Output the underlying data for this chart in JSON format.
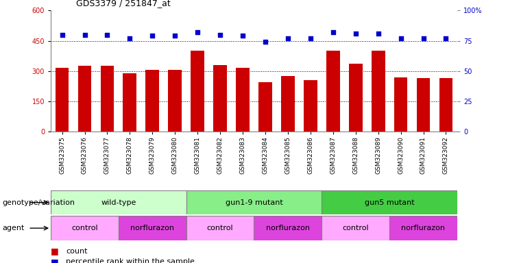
{
  "title": "GDS3379 / 251847_at",
  "samples": [
    "GSM323075",
    "GSM323076",
    "GSM323077",
    "GSM323078",
    "GSM323079",
    "GSM323080",
    "GSM323081",
    "GSM323082",
    "GSM323083",
    "GSM323084",
    "GSM323085",
    "GSM323086",
    "GSM323087",
    "GSM323088",
    "GSM323089",
    "GSM323090",
    "GSM323091",
    "GSM323092"
  ],
  "counts": [
    315,
    325,
    325,
    290,
    305,
    305,
    400,
    330,
    315,
    245,
    275,
    255,
    400,
    335,
    400,
    270,
    265,
    265
  ],
  "percentile_ranks": [
    80,
    80,
    80,
    77,
    79,
    79,
    82,
    80,
    79,
    74,
    77,
    77,
    82,
    81,
    81,
    77,
    77,
    77
  ],
  "ylim_left": [
    0,
    600
  ],
  "ylim_right": [
    0,
    100
  ],
  "yticks_left": [
    0,
    150,
    300,
    450,
    600
  ],
  "ytick_labels_left": [
    "0",
    "150",
    "300",
    "450",
    "600"
  ],
  "yticks_right": [
    0,
    25,
    50,
    75,
    100
  ],
  "ytick_labels_right": [
    "0",
    "25",
    "50",
    "75",
    "100%"
  ],
  "bar_color": "#cc0000",
  "dot_color": "#0000cc",
  "genotype_groups": [
    {
      "label": "wild-type",
      "start": 0,
      "end": 5,
      "color": "#ccffcc"
    },
    {
      "label": "gun1-9 mutant",
      "start": 6,
      "end": 11,
      "color": "#88ee88"
    },
    {
      "label": "gun5 mutant",
      "start": 12,
      "end": 17,
      "color": "#44cc44"
    }
  ],
  "agent_groups": [
    {
      "label": "control",
      "start": 0,
      "end": 2,
      "color": "#ffaaff"
    },
    {
      "label": "norflurazon",
      "start": 3,
      "end": 5,
      "color": "#dd44dd"
    },
    {
      "label": "control",
      "start": 6,
      "end": 8,
      "color": "#ffaaff"
    },
    {
      "label": "norflurazon",
      "start": 9,
      "end": 11,
      "color": "#dd44dd"
    },
    {
      "label": "control",
      "start": 12,
      "end": 14,
      "color": "#ffaaff"
    },
    {
      "label": "norflurazon",
      "start": 15,
      "end": 17,
      "color": "#dd44dd"
    }
  ],
  "legend_count_color": "#cc0000",
  "legend_dot_color": "#0000cc",
  "genotype_label": "genotype/variation",
  "agent_label": "agent",
  "bg_color": "#ffffff"
}
